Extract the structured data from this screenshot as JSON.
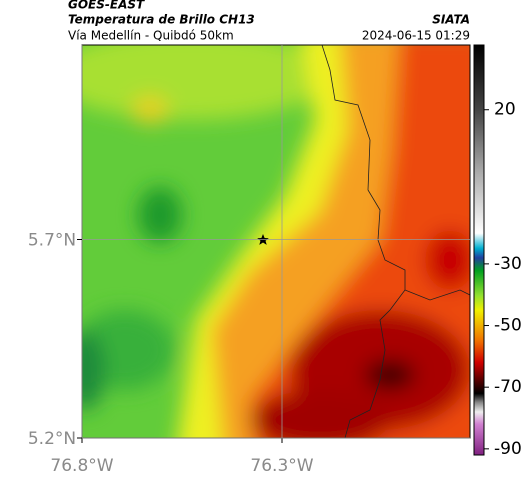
{
  "header": {
    "title": "GOES-EAST",
    "subtitle": "Temperatura de Brillo CH13",
    "brand": "SIATA",
    "route": "Vía Medellín - Quibdó 50km",
    "timestamp": "2024-06-15 01:29"
  },
  "map": {
    "xlim": [
      -76.8,
      -75.83
    ],
    "ylim": [
      5.2,
      6.19
    ],
    "xticks": [
      {
        "value": -76.8,
        "label": "76.8°W"
      },
      {
        "value": -76.3,
        "label": "76.3°W"
      }
    ],
    "yticks": [
      {
        "value": 5.2,
        "label": "5.2°N"
      },
      {
        "value": 5.7,
        "label": "5.7°N"
      }
    ],
    "grid": true
  },
  "colorbar": {
    "lim": [
      -92,
      41
    ],
    "ticks": [
      20,
      -30,
      -50,
      -70,
      -90
    ]
  }
}
